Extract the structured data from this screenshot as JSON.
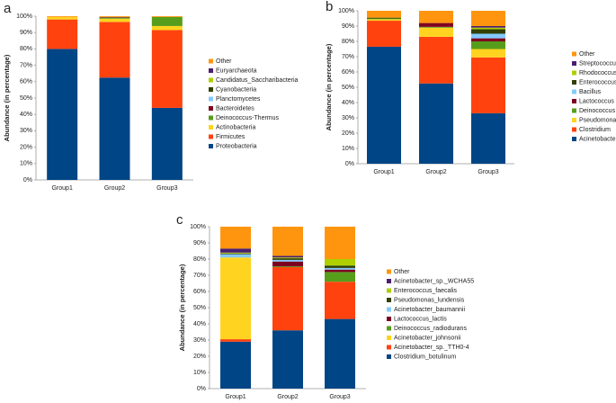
{
  "chart_data": [
    {
      "type": "stacked_bar",
      "panel": "a",
      "y_label": "Abundance (in percentage)",
      "categories": [
        "Group1",
        "Group2",
        "Group3"
      ],
      "ylim": [
        0,
        100
      ],
      "yticks": [
        {
          "value": 0,
          "label": "0%"
        },
        {
          "value": 10,
          "label": "10%"
        },
        {
          "value": 20,
          "label": "20%"
        },
        {
          "value": 30,
          "label": "30%"
        },
        {
          "value": 40,
          "label": "40%"
        },
        {
          "value": 50,
          "label": "50%"
        },
        {
          "value": 60,
          "label": "60%"
        },
        {
          "value": 70,
          "label": "70%"
        },
        {
          "value": 80,
          "label": "80%"
        },
        {
          "value": 90,
          "label": "90%"
        },
        {
          "value": 100,
          "label": "100%"
        }
      ],
      "grid": false,
      "series": [
        {
          "name": "Proteobacteria",
          "color": "#004586",
          "values": [
            80,
            62.5,
            44
          ]
        },
        {
          "name": "Firmicutes",
          "color": "#ff420e",
          "values": [
            18,
            34,
            47.5
          ]
        },
        {
          "name": "Actinobacteria",
          "color": "#ffd320",
          "values": [
            1.5,
            2,
            2.5
          ]
        },
        {
          "name": "Deinococcus-Thermus",
          "color": "#579d1c",
          "values": [
            0,
            0.5,
            5.5
          ]
        },
        {
          "name": "Bacteroidetes",
          "color": "#7e0021",
          "values": [
            0,
            0.3,
            0
          ]
        },
        {
          "name": "Planctomycetes",
          "color": "#83caff",
          "values": [
            0,
            0,
            0
          ]
        },
        {
          "name": "Cyanobacteria",
          "color": "#314004",
          "values": [
            0,
            0.2,
            0
          ]
        },
        {
          "name": "Candidatus_Saccharibacteria",
          "color": "#aecf00",
          "values": [
            0,
            0,
            0
          ]
        },
        {
          "name": "Euryarchaeota",
          "color": "#4b1f6f",
          "values": [
            0,
            0,
            0
          ]
        },
        {
          "name": "Other",
          "color": "#ff950e",
          "values": [
            0.5,
            0.5,
            0.5
          ]
        }
      ]
    },
    {
      "type": "stacked_bar",
      "panel": "b",
      "y_label": "Abundance (in percentage)",
      "categories": [
        "Group1",
        "Group2",
        "Group3"
      ],
      "ylim": [
        0,
        100
      ],
      "yticks": [
        {
          "value": 0,
          "label": "0%"
        },
        {
          "value": 10,
          "label": "10%"
        },
        {
          "value": 20,
          "label": "20%"
        },
        {
          "value": 30,
          "label": "30%"
        },
        {
          "value": 40,
          "label": "40%"
        },
        {
          "value": 50,
          "label": "50%"
        },
        {
          "value": 60,
          "label": "60%"
        },
        {
          "value": 70,
          "label": "70%"
        },
        {
          "value": 80,
          "label": "80%"
        },
        {
          "value": 90,
          "label": "90%"
        },
        {
          "value": 100,
          "label": "100%"
        }
      ],
      "grid": false,
      "series": [
        {
          "name": "Acinetobacter",
          "color": "#004586",
          "values": [
            76.5,
            52.5,
            33
          ]
        },
        {
          "name": "Clostridium",
          "color": "#ff420e",
          "values": [
            17,
            30.5,
            36.5
          ]
        },
        {
          "name": "Pseudomonas",
          "color": "#ffd320",
          "values": [
            1,
            6,
            5.5
          ]
        },
        {
          "name": "Deinococcus",
          "color": "#579d1c",
          "values": [
            0.5,
            0.5,
            5
          ]
        },
        {
          "name": "Lactococcus",
          "color": "#7e0021",
          "values": [
            0,
            2.5,
            2
          ]
        },
        {
          "name": "Bacillus",
          "color": "#83caff",
          "values": [
            0,
            0,
            3
          ]
        },
        {
          "name": "Enterococcus",
          "color": "#314004",
          "values": [
            0.5,
            0,
            3
          ]
        },
        {
          "name": "Rhodococcus",
          "color": "#aecf00",
          "values": [
            0,
            0,
            1
          ]
        },
        {
          "name": "Streptococcus",
          "color": "#4b1f6f",
          "values": [
            0,
            0,
            1
          ]
        },
        {
          "name": "Other",
          "color": "#ff950e",
          "values": [
            4.5,
            8,
            10
          ]
        }
      ]
    },
    {
      "type": "stacked_bar",
      "panel": "c",
      "y_label": "Abundance (in percentage)",
      "categories": [
        "Group1",
        "Group2",
        "Group3"
      ],
      "ylim": [
        0,
        100
      ],
      "yticks": [
        {
          "value": 0,
          "label": "0%"
        },
        {
          "value": 10,
          "label": "10%"
        },
        {
          "value": 20,
          "label": "20%"
        },
        {
          "value": 30,
          "label": "30%"
        },
        {
          "value": 40,
          "label": "40%"
        },
        {
          "value": 50,
          "label": "50%"
        },
        {
          "value": 60,
          "label": "60%"
        },
        {
          "value": 70,
          "label": "70%"
        },
        {
          "value": 80,
          "label": "80%"
        },
        {
          "value": 90,
          "label": "90%"
        },
        {
          "value": 100,
          "label": "100%"
        }
      ],
      "grid": false,
      "series": [
        {
          "name": "Clostridium_botulinum",
          "color": "#004586",
          "values": [
            29,
            36,
            43
          ]
        },
        {
          "name": "Acinetobacter_sp._TTH0-4",
          "color": "#ff420e",
          "values": [
            1.5,
            39,
            23
          ]
        },
        {
          "name": "Acinetobacter_johnsonii",
          "color": "#ffd320",
          "values": [
            50.5,
            0,
            0
          ]
        },
        {
          "name": "Deinococcus_radiodurans",
          "color": "#579d1c",
          "values": [
            0,
            0.5,
            6
          ]
        },
        {
          "name": "Lactococcus_lactis",
          "color": "#7e0021",
          "values": [
            0,
            3,
            1.5
          ]
        },
        {
          "name": "Acinetobacter_baumannii",
          "color": "#83caff",
          "values": [
            2,
            1,
            1
          ]
        },
        {
          "name": "Pseudomonas_lundensis",
          "color": "#314004",
          "values": [
            0.5,
            1,
            1.5
          ]
        },
        {
          "name": "Enterococcus_faecalis",
          "color": "#aecf00",
          "values": [
            0.5,
            0.5,
            4
          ]
        },
        {
          "name": "Acinetobacter_sp._WCHA55",
          "color": "#4b1f6f",
          "values": [
            2.5,
            1,
            0
          ]
        },
        {
          "name": "Other",
          "color": "#ff950e",
          "values": [
            13.5,
            18,
            20
          ]
        }
      ]
    }
  ]
}
